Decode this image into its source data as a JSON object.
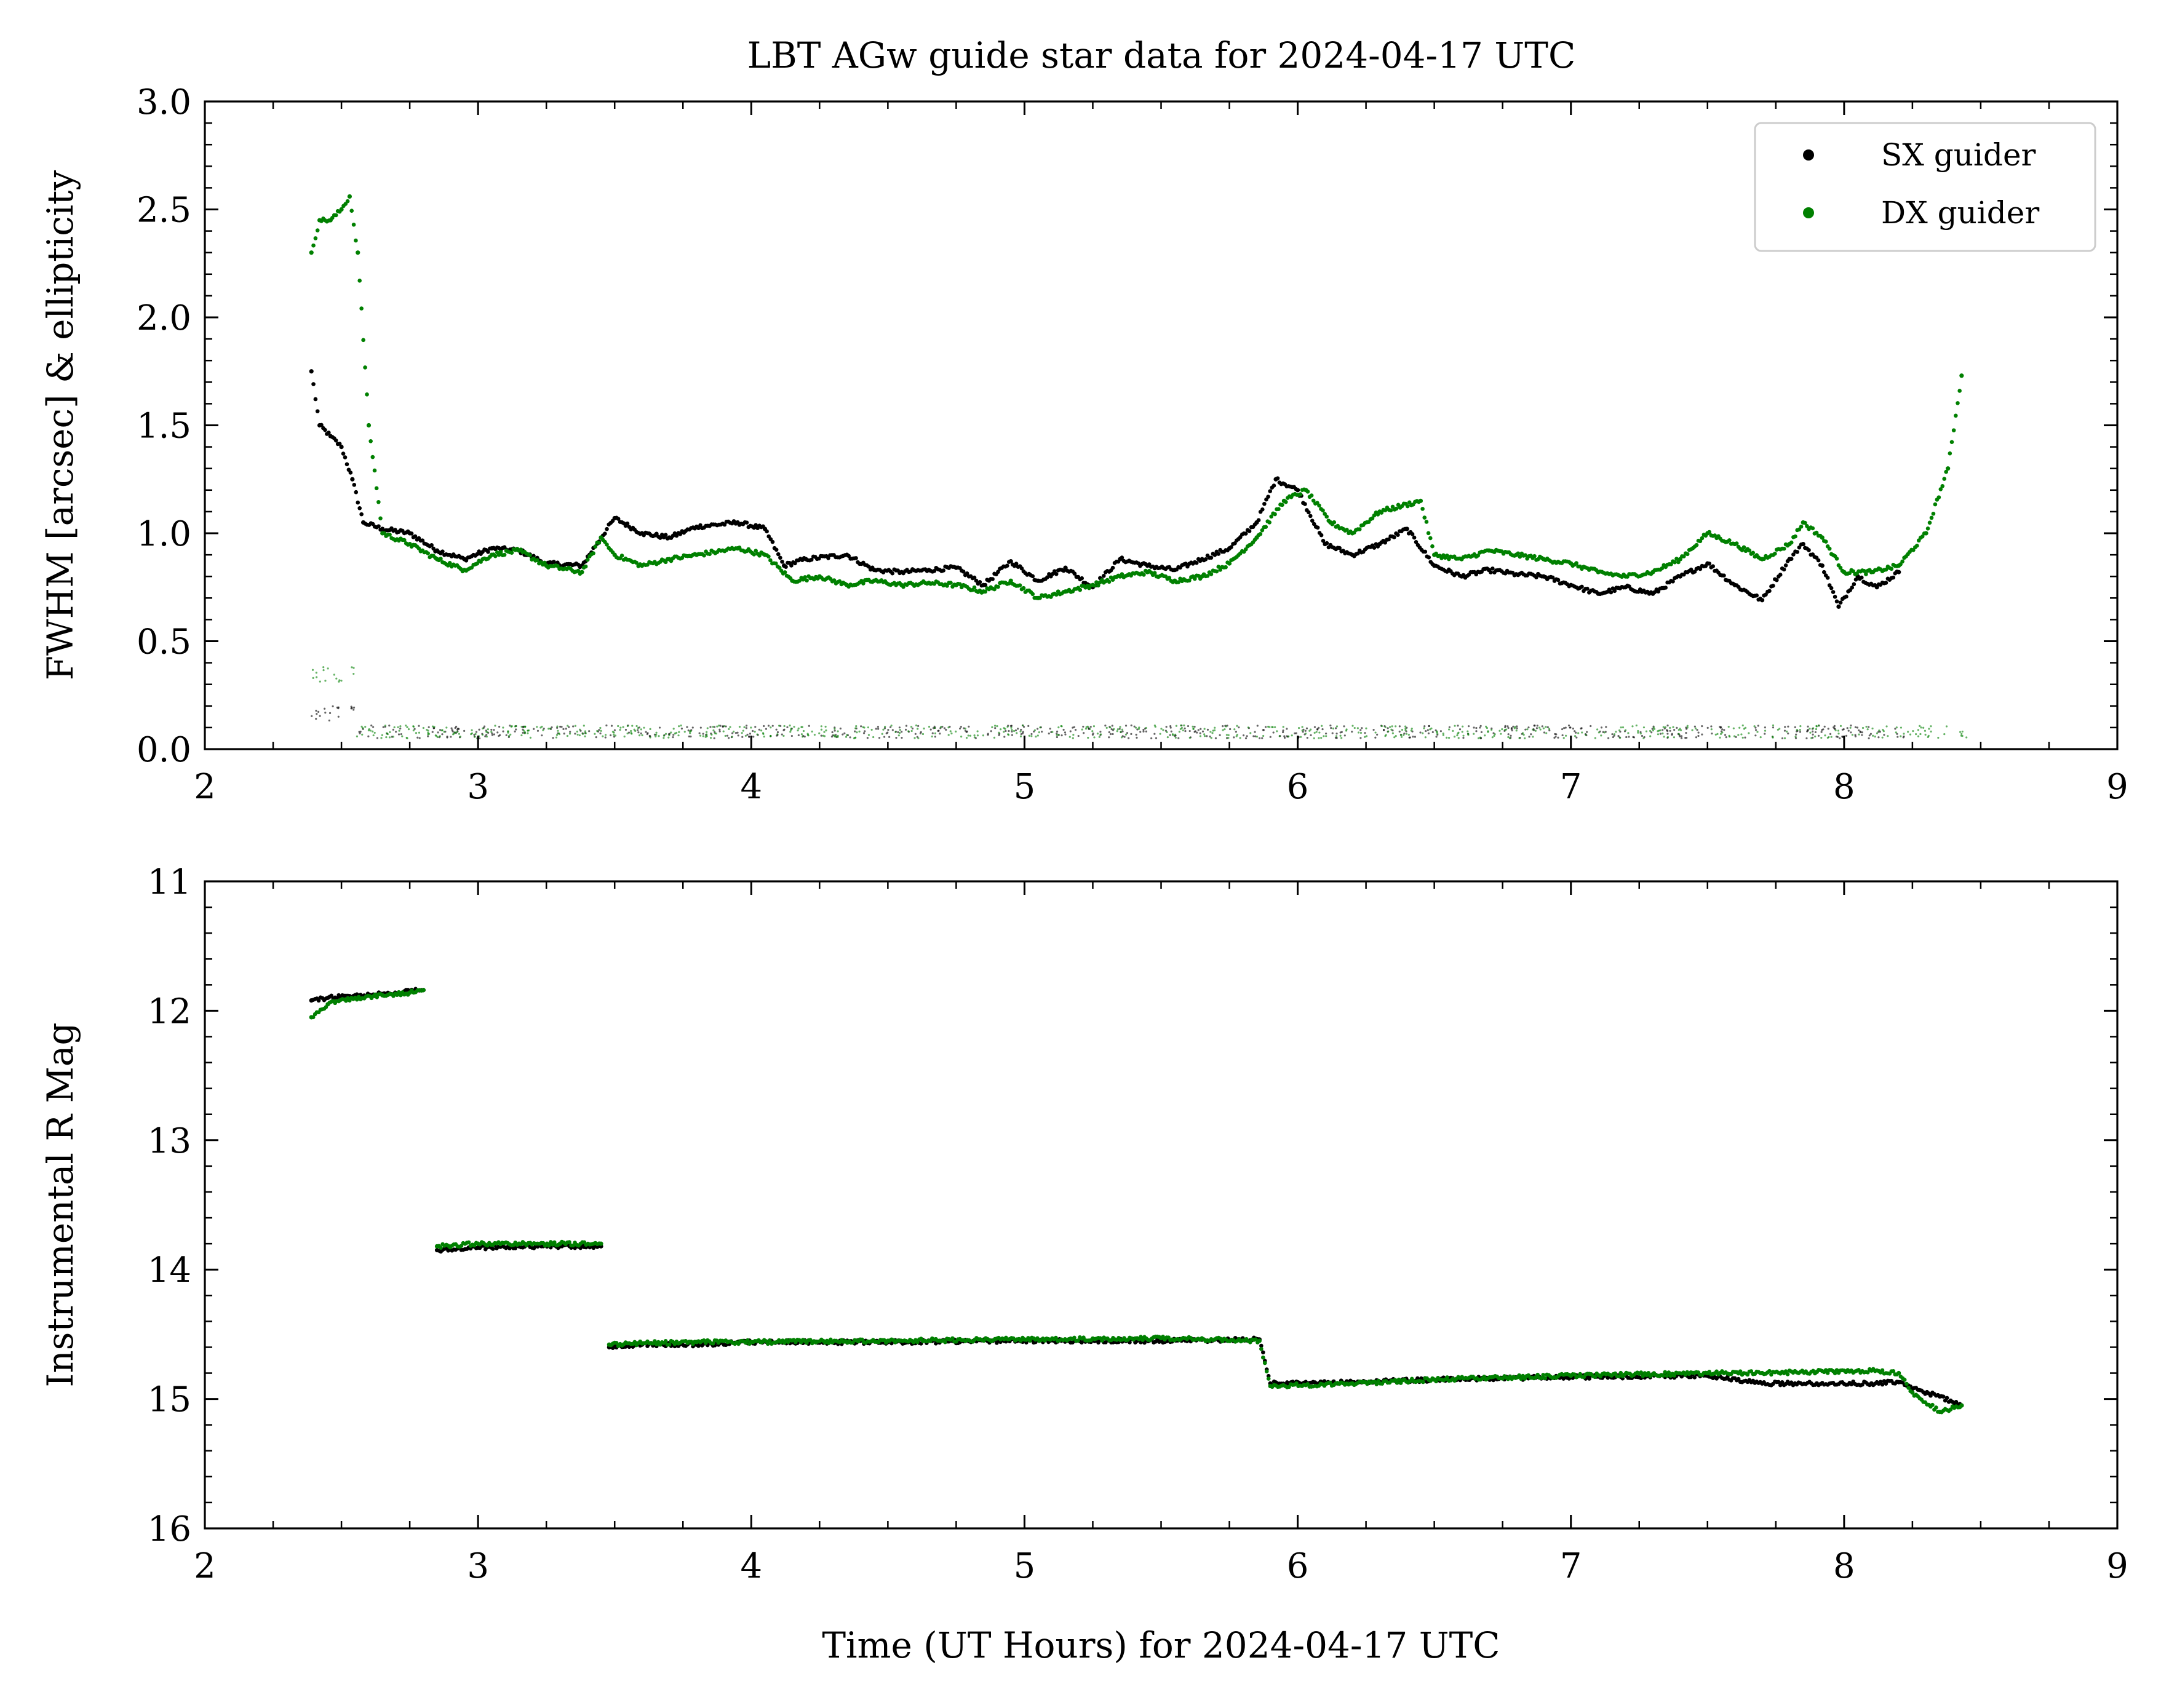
{
  "figure": {
    "title": "LBT AGw guide star data for 2024-04-17 UTC",
    "legend": {
      "placement": "top-right",
      "entries": [
        {
          "name": "SX guider",
          "color": "#000000"
        },
        {
          "name": "DX guider",
          "color": "#008000"
        }
      ]
    }
  },
  "chart_data": [
    {
      "type": "scatter",
      "title": "LBT AGw guide star data for 2024-04-17 UTC",
      "xlabel": "",
      "ylabel": "FWHM [arcsec] & ellipticity",
      "xlim": [
        2,
        9
      ],
      "ylim": [
        0.0,
        3.0
      ],
      "xticks": [
        "2",
        "3",
        "4",
        "5",
        "6",
        "7",
        "8",
        "9"
      ],
      "yticks": [
        "0.0",
        "0.5",
        "1.0",
        "1.5",
        "2.0",
        "2.5",
        "3.0"
      ],
      "grid": false,
      "legend": "top-right",
      "series": [
        {
          "name": "SX guider",
          "color": "#000000",
          "x": [
            2.39,
            2.42,
            2.46,
            2.5,
            2.54,
            2.58,
            2.65,
            2.75,
            2.85,
            2.95,
            3.05,
            3.15,
            3.25,
            3.38,
            3.45,
            3.5,
            3.6,
            3.7,
            3.8,
            3.95,
            4.05,
            4.12,
            4.2,
            4.35,
            4.45,
            4.55,
            4.65,
            4.75,
            4.85,
            4.95,
            5.05,
            5.15,
            5.25,
            5.35,
            5.45,
            5.55,
            5.65,
            5.75,
            5.85,
            5.92,
            6.0,
            6.1,
            6.2,
            6.3,
            6.4,
            6.5,
            6.6,
            6.7,
            6.8,
            6.9,
            7.0,
            7.1,
            7.2,
            7.3,
            7.4,
            7.5,
            7.6,
            7.7,
            7.8,
            7.85,
            7.92,
            7.98,
            8.05,
            8.12,
            8.2
          ],
          "y": [
            1.75,
            1.5,
            1.45,
            1.4,
            1.25,
            1.05,
            1.02,
            1.0,
            0.92,
            0.88,
            0.93,
            0.92,
            0.86,
            0.85,
            0.98,
            1.07,
            1.0,
            0.98,
            1.03,
            1.05,
            1.02,
            0.85,
            0.88,
            0.9,
            0.83,
            0.82,
            0.83,
            0.84,
            0.76,
            0.87,
            0.78,
            0.84,
            0.75,
            0.88,
            0.85,
            0.83,
            0.88,
            0.93,
            1.05,
            1.25,
            1.2,
            0.95,
            0.9,
            0.95,
            1.02,
            0.85,
            0.8,
            0.83,
            0.81,
            0.8,
            0.76,
            0.72,
            0.75,
            0.72,
            0.8,
            0.86,
            0.76,
            0.69,
            0.88,
            0.95,
            0.85,
            0.66,
            0.8,
            0.75,
            0.82
          ]
        },
        {
          "name": "DX guider",
          "color": "#008000",
          "x": [
            2.39,
            2.42,
            2.46,
            2.5,
            2.53,
            2.56,
            2.6,
            2.65,
            2.75,
            2.85,
            2.95,
            3.05,
            3.15,
            3.25,
            3.38,
            3.45,
            3.5,
            3.6,
            3.7,
            3.8,
            3.95,
            4.05,
            4.15,
            4.25,
            4.35,
            4.45,
            4.55,
            4.65,
            4.75,
            4.85,
            4.95,
            5.05,
            5.15,
            5.25,
            5.35,
            5.45,
            5.55,
            5.65,
            5.75,
            5.85,
            5.95,
            6.03,
            6.12,
            6.2,
            6.3,
            6.45,
            6.5,
            6.6,
            6.7,
            6.8,
            6.9,
            7.0,
            7.1,
            7.2,
            7.3,
            7.4,
            7.5,
            7.6,
            7.7,
            7.8,
            7.85,
            7.92,
            8.0,
            8.1,
            8.2,
            8.3,
            8.38,
            8.43
          ],
          "y": [
            2.3,
            2.45,
            2.45,
            2.5,
            2.56,
            2.3,
            1.5,
            1.0,
            0.95,
            0.88,
            0.83,
            0.9,
            0.92,
            0.85,
            0.82,
            0.98,
            0.9,
            0.85,
            0.88,
            0.9,
            0.93,
            0.9,
            0.78,
            0.8,
            0.76,
            0.78,
            0.76,
            0.77,
            0.76,
            0.73,
            0.78,
            0.7,
            0.73,
            0.76,
            0.8,
            0.82,
            0.78,
            0.8,
            0.86,
            0.98,
            1.15,
            1.2,
            1.05,
            1.0,
            1.1,
            1.15,
            0.9,
            0.88,
            0.92,
            0.9,
            0.88,
            0.86,
            0.82,
            0.8,
            0.82,
            0.88,
            1.0,
            0.95,
            0.88,
            0.95,
            1.05,
            0.98,
            0.82,
            0.82,
            0.85,
            1.0,
            1.3,
            1.73
          ]
        }
      ]
    },
    {
      "type": "scatter",
      "title": "",
      "xlabel": "Time (UT Hours) for 2024-04-17 UTC",
      "ylabel": "Instrumental R Mag",
      "xlim": [
        2,
        9
      ],
      "ylim": [
        16,
        11
      ],
      "inverted_y": true,
      "xticks": [
        "2",
        "3",
        "4",
        "5",
        "6",
        "7",
        "8",
        "9"
      ],
      "yticks": [
        "11",
        "12",
        "13",
        "14",
        "15",
        "16"
      ],
      "grid": false,
      "series": [
        {
          "name": "SX guider",
          "color": "#000000",
          "x": [
            2.39,
            2.45,
            2.55,
            2.65,
            2.75,
            2.8,
            2.85,
            3.0,
            3.15,
            3.3,
            3.45,
            3.48,
            3.6,
            3.8,
            4.0,
            4.5,
            5.0,
            5.5,
            5.86,
            5.9,
            6.2,
            6.5,
            7.0,
            7.5,
            7.7,
            7.9,
            8.1,
            8.2,
            8.25,
            8.35,
            8.43
          ],
          "y": [
            11.92,
            11.9,
            11.88,
            11.87,
            11.85,
            11.84,
            13.85,
            13.83,
            13.82,
            13.82,
            13.82,
            14.6,
            14.58,
            14.58,
            14.56,
            14.56,
            14.55,
            14.55,
            14.54,
            14.88,
            14.87,
            14.85,
            14.83,
            14.82,
            14.88,
            14.88,
            14.88,
            14.87,
            14.92,
            14.98,
            15.05
          ]
        },
        {
          "name": "DX guider",
          "color": "#008000",
          "x": [
            2.39,
            2.45,
            2.55,
            2.65,
            2.75,
            2.8,
            2.85,
            3.0,
            3.15,
            3.3,
            3.45,
            3.48,
            3.6,
            3.8,
            4.0,
            4.5,
            5.0,
            5.5,
            5.86,
            5.9,
            6.2,
            6.5,
            7.0,
            7.5,
            7.7,
            7.9,
            8.1,
            8.2,
            8.25,
            8.35,
            8.43
          ],
          "y": [
            12.05,
            11.95,
            11.9,
            11.88,
            11.86,
            11.84,
            13.82,
            13.8,
            13.8,
            13.8,
            13.8,
            14.58,
            14.57,
            14.56,
            14.56,
            14.55,
            14.54,
            14.53,
            14.55,
            14.9,
            14.88,
            14.85,
            14.82,
            14.8,
            14.8,
            14.79,
            14.78,
            14.8,
            14.95,
            15.1,
            15.05
          ]
        }
      ]
    }
  ]
}
